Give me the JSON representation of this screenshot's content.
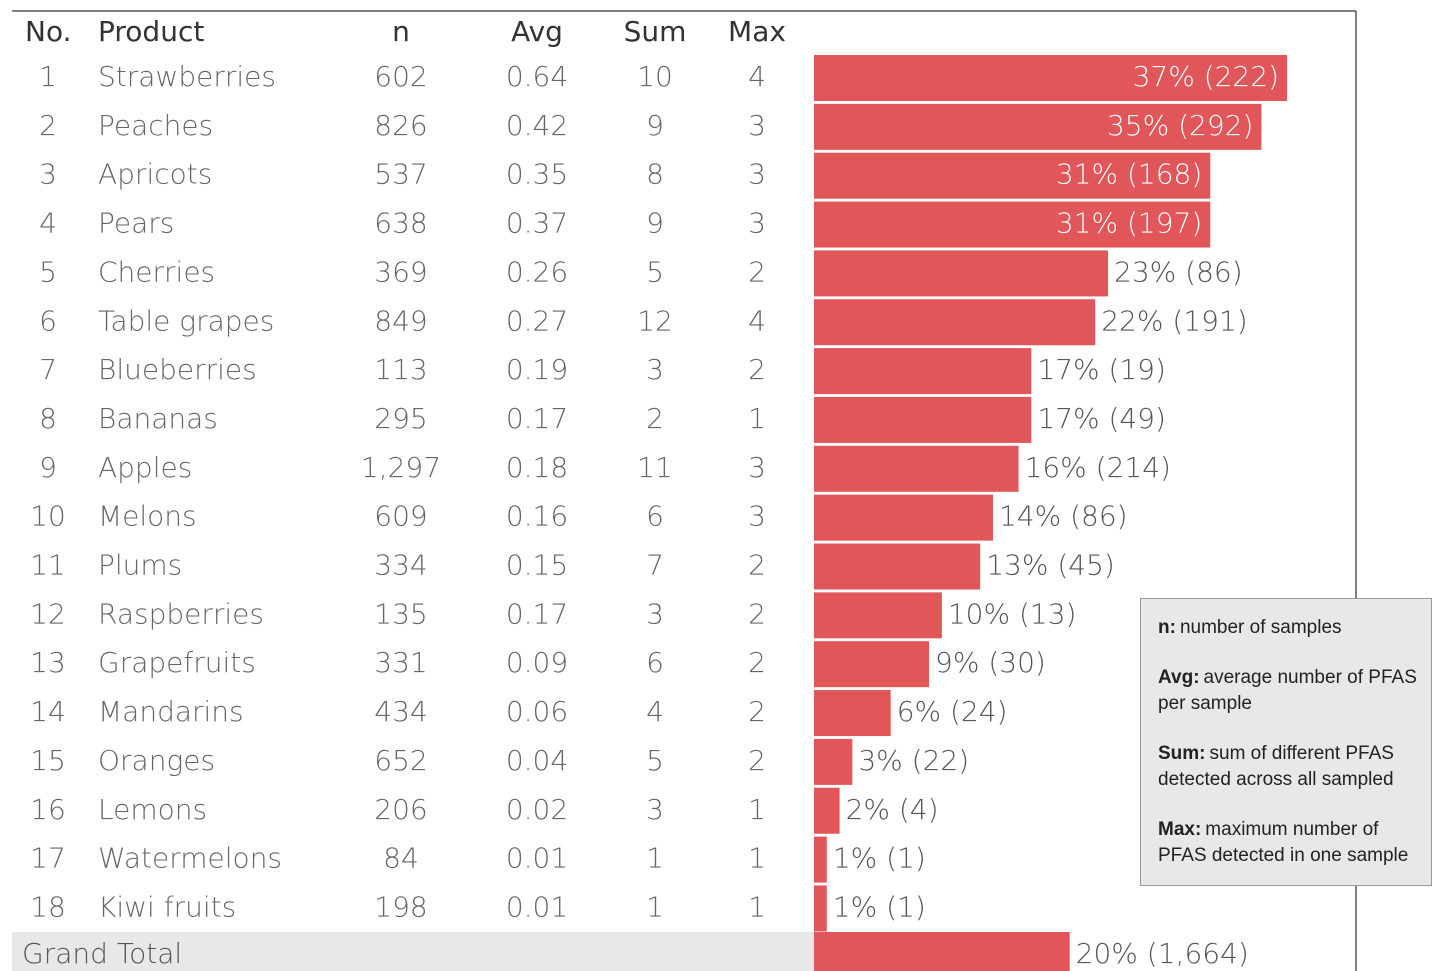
{
  "chart_data": {
    "type": "bar",
    "columns": [
      "No.",
      "Product",
      "n",
      "Avg",
      "Sum",
      "Max"
    ],
    "rows": [
      [
        1,
        "Strawberries",
        602,
        0.64,
        10,
        4
      ],
      [
        2,
        "Peaches",
        826,
        0.42,
        9,
        3
      ],
      [
        3,
        "Apricots",
        537,
        0.35,
        8,
        3
      ],
      [
        4,
        "Pears",
        638,
        0.37,
        9,
        3
      ],
      [
        5,
        "Cherries",
        369,
        0.26,
        5,
        2
      ],
      [
        6,
        "Table grapes",
        849,
        0.27,
        12,
        4
      ],
      [
        7,
        "Blueberries",
        113,
        0.19,
        3,
        2
      ],
      [
        8,
        "Bananas",
        295,
        0.17,
        2,
        1
      ],
      [
        9,
        "Apples",
        {
          "value": 1297,
          "label": "1,297"
        },
        0.18,
        11,
        3
      ],
      [
        10,
        "Melons",
        609,
        0.16,
        6,
        3
      ],
      [
        11,
        "Plums",
        334,
        0.15,
        7,
        2
      ],
      [
        12,
        "Raspberries",
        135,
        0.17,
        3,
        2
      ],
      [
        13,
        "Grapefruits",
        331,
        0.09,
        6,
        2
      ],
      [
        14,
        "Mandarins",
        434,
        0.06,
        4,
        2
      ],
      [
        15,
        "Oranges",
        652,
        0.04,
        5,
        2
      ],
      [
        16,
        "Lemons",
        206,
        0.02,
        3,
        1
      ],
      [
        17,
        "Watermelons",
        84,
        0.01,
        1,
        1
      ],
      [
        18,
        "Kiwi fruits",
        198,
        0.01,
        1,
        1
      ]
    ],
    "values": [
      37,
      35,
      31,
      31,
      23,
      22,
      17,
      17,
      16,
      14,
      13,
      10,
      9,
      6,
      3,
      2,
      1,
      1
    ],
    "value_labels": [
      "37% (222)",
      "35% (292)",
      "31% (168)",
      "31% (197)",
      "23% (86)",
      "22% (191)",
      "17% (19)",
      "17% (49)",
      "16% (214)",
      "14% (86)",
      "13% (45)",
      "10% (13)",
      "9% (30)",
      "6% (24)",
      "3% (22)",
      "2% (4)",
      "1% (1)",
      "1% (1)"
    ],
    "color": "#e15759",
    "total": {
      "label": "Grand Total",
      "value": 20,
      "value_label": "20% (1,664)"
    },
    "notes": [
      {
        "term": "n:",
        "text": "number of samples"
      },
      {
        "term": "Avg:",
        "text": "average number of PFAS per sample"
      },
      {
        "term": "Sum:",
        "text": "sum of different PFAS detected across all sampled"
      },
      {
        "term": "Max:",
        "text": "maximum number of PFAS detected in one sample"
      }
    ]
  }
}
